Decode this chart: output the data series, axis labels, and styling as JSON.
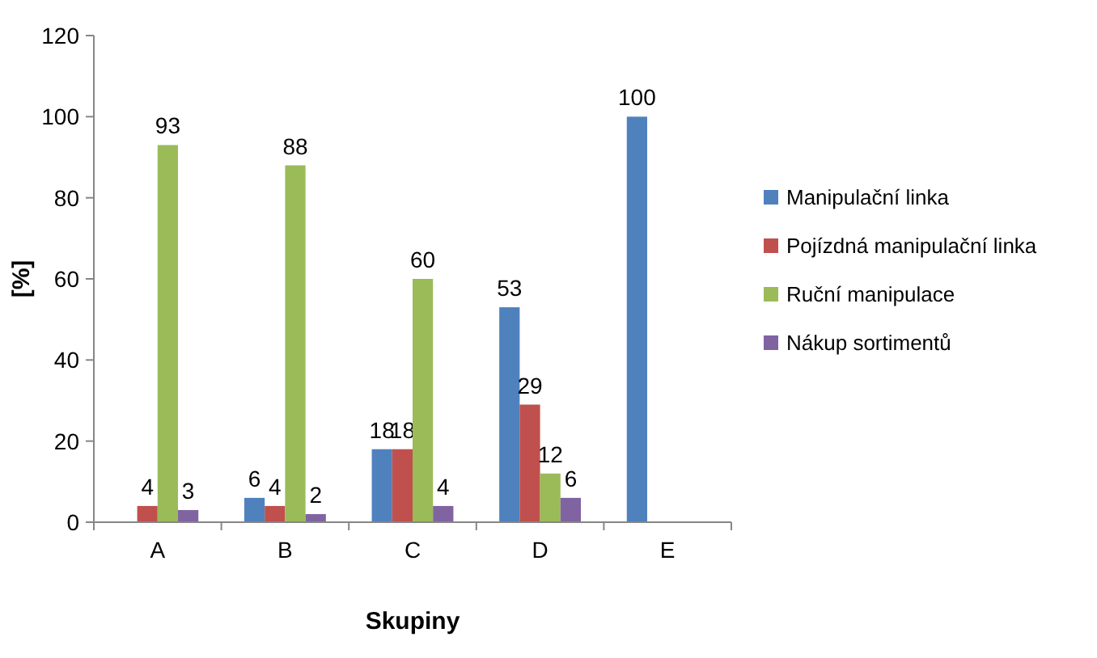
{
  "chart_data": {
    "type": "bar",
    "xlabel": "Skupiny",
    "ylabel": "[%]",
    "categories": [
      "A",
      "B",
      "C",
      "D",
      "E"
    ],
    "ylim": [
      0,
      120
    ],
    "yticks": [
      0,
      20,
      40,
      60,
      80,
      100,
      120
    ],
    "grid": false,
    "legend": "right",
    "series": [
      {
        "name": "Manipulační linka",
        "color": "#4f81bd",
        "values": [
          0,
          6,
          18,
          53,
          100
        ],
        "value_labels": [
          null,
          "6",
          "18",
          "53",
          "100"
        ]
      },
      {
        "name": "Pojízdná manipulační linka",
        "color": "#c0504d",
        "values": [
          4,
          4,
          18,
          29,
          0
        ],
        "value_labels": [
          "4",
          "4",
          "18",
          "29",
          null
        ]
      },
      {
        "name": "Ruční manipulace",
        "color": "#9bbb59",
        "values": [
          93,
          88,
          60,
          12,
          0
        ],
        "value_labels": [
          "93",
          "88",
          "60",
          "12",
          null
        ]
      },
      {
        "name": "Nákup sortimentů",
        "color": "#8064a2",
        "values": [
          3,
          2,
          4,
          6,
          0
        ],
        "value_labels": [
          "3",
          "2",
          "4",
          "6",
          null
        ]
      }
    ]
  }
}
